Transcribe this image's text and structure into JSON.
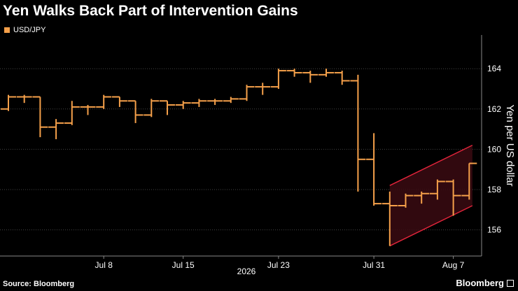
{
  "title": "Yen Walks Back Part of Intervention Gains",
  "source": "Source: Bloomberg",
  "brand": "Bloomberg",
  "colors": {
    "background": "#000000",
    "series": "#f5a04a",
    "channel_line": "#e0243a",
    "channel_fill": "#3a0a12",
    "grid": "#444444"
  },
  "chart_data": {
    "type": "ohlc",
    "legend": [
      "USD/JPY"
    ],
    "ylabel": "Yen per US dollar",
    "xlabel": "2026",
    "ylim": [
      154.7,
      165.5
    ],
    "y_ticks": [
      156,
      158,
      160,
      162,
      164
    ],
    "x_ticks": [
      {
        "label": "Jul 8",
        "index": 6
      },
      {
        "label": "Jul 15",
        "index": 11
      },
      {
        "label": "Jul 23",
        "index": 17
      },
      {
        "label": "Jul 31",
        "index": 23
      },
      {
        "label": "Aug 7",
        "index": 28
      }
    ],
    "x_group_label": "2026",
    "series": [
      {
        "name": "USD/JPY",
        "bars": [
          {
            "open": 162.0,
            "high": 162.7,
            "low": 161.9,
            "close": 162.6
          },
          {
            "open": 162.6,
            "high": 162.7,
            "low": 162.3,
            "close": 162.6
          },
          {
            "open": 162.6,
            "high": 162.6,
            "low": 160.6,
            "close": 161.1
          },
          {
            "open": 161.1,
            "high": 161.5,
            "low": 160.5,
            "close": 161.3
          },
          {
            "open": 161.3,
            "high": 162.4,
            "low": 161.2,
            "close": 162.1
          },
          {
            "open": 162.1,
            "high": 162.2,
            "low": 161.7,
            "close": 162.1
          },
          {
            "open": 162.1,
            "high": 162.7,
            "low": 162.0,
            "close": 162.6
          },
          {
            "open": 162.6,
            "high": 162.6,
            "low": 162.1,
            "close": 162.4
          },
          {
            "open": 162.4,
            "high": 162.4,
            "low": 161.3,
            "close": 161.7
          },
          {
            "open": 161.7,
            "high": 162.5,
            "low": 161.6,
            "close": 162.4
          },
          {
            "open": 162.4,
            "high": 162.4,
            "low": 161.7,
            "close": 162.2
          },
          {
            "open": 162.2,
            "high": 162.4,
            "low": 162.0,
            "close": 162.3
          },
          {
            "open": 162.3,
            "high": 162.5,
            "low": 162.1,
            "close": 162.4
          },
          {
            "open": 162.4,
            "high": 162.5,
            "low": 162.2,
            "close": 162.4
          },
          {
            "open": 162.4,
            "high": 162.6,
            "low": 162.3,
            "close": 162.5
          },
          {
            "open": 162.5,
            "high": 163.2,
            "low": 162.4,
            "close": 163.1
          },
          {
            "open": 163.1,
            "high": 163.3,
            "low": 162.7,
            "close": 163.1
          },
          {
            "open": 163.1,
            "high": 164.0,
            "low": 163.0,
            "close": 163.9
          },
          {
            "open": 163.9,
            "high": 164.0,
            "low": 163.6,
            "close": 163.8
          },
          {
            "open": 163.8,
            "high": 163.9,
            "low": 163.3,
            "close": 163.7
          },
          {
            "open": 163.7,
            "high": 164.0,
            "low": 163.6,
            "close": 163.8
          },
          {
            "open": 163.8,
            "high": 163.9,
            "low": 163.2,
            "close": 163.4
          },
          {
            "open": 163.4,
            "high": 163.7,
            "low": 157.9,
            "close": 159.5
          },
          {
            "open": 159.5,
            "high": 160.8,
            "low": 157.2,
            "close": 157.3
          },
          {
            "open": 157.3,
            "high": 157.9,
            "low": 155.2,
            "close": 157.2
          },
          {
            "open": 157.2,
            "high": 157.8,
            "low": 157.1,
            "close": 157.7
          },
          {
            "open": 157.7,
            "high": 157.9,
            "low": 157.3,
            "close": 157.8
          },
          {
            "open": 157.8,
            "high": 158.5,
            "low": 157.5,
            "close": 158.4
          },
          {
            "open": 158.4,
            "high": 158.5,
            "low": 156.7,
            "close": 157.7
          },
          {
            "open": 157.7,
            "high": 159.3,
            "low": 157.5,
            "close": 159.3
          }
        ]
      }
    ],
    "annotations": [
      {
        "type": "channel",
        "start_index": 24,
        "end_index": 29.2,
        "upper": [
          158.2,
          160.2
        ],
        "lower": [
          155.2,
          157.2
        ]
      }
    ]
  }
}
